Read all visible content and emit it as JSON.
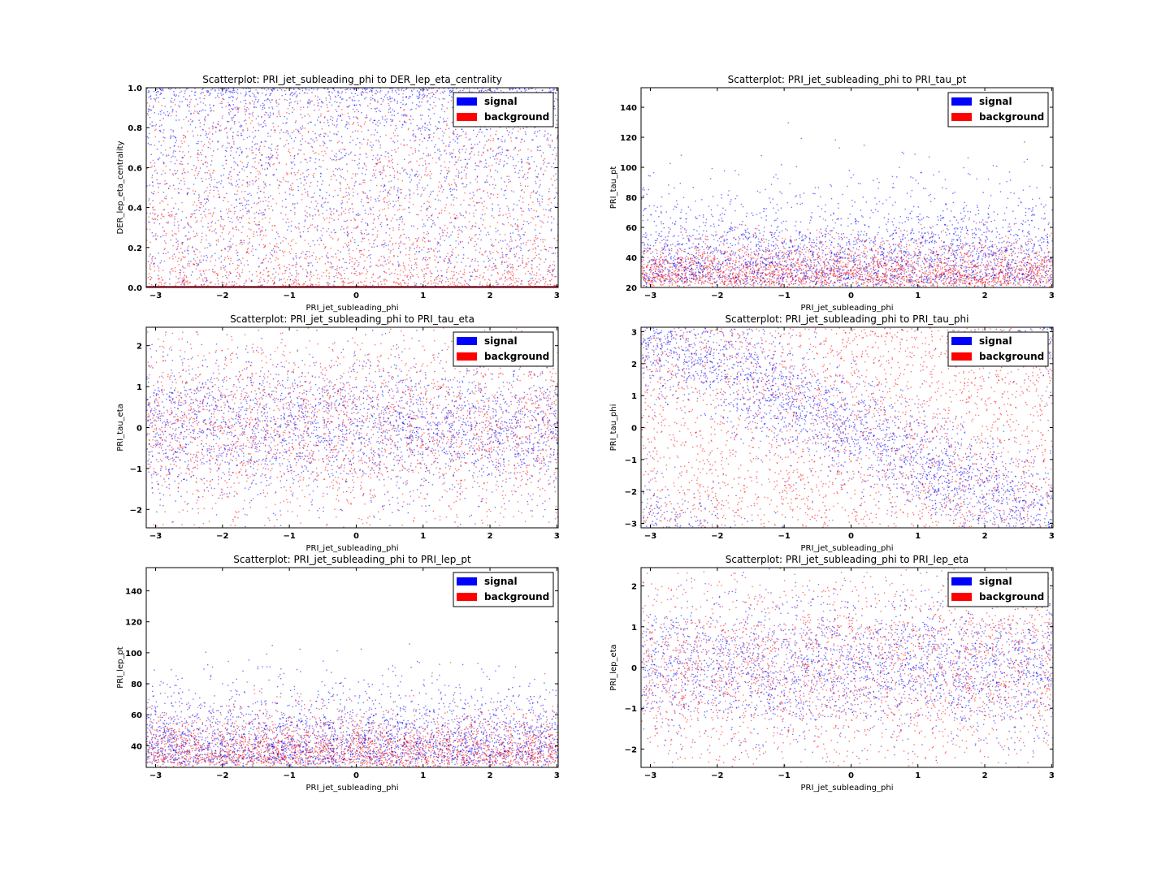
{
  "colors": {
    "signal": "#0000ff",
    "background": "#ff0000",
    "axes": "#000000",
    "page": "#ffffff"
  },
  "legend": {
    "entries": [
      "signal",
      "background"
    ],
    "placement": "top-right"
  },
  "chart_data": [
    {
      "type": "scatter",
      "title": "Scatterplot: PRI_jet_subleading_phi to DER_lep_eta_centrality",
      "xlabel": "PRI_jet_subleading_phi",
      "ylabel": "DER_lep_eta_centrality",
      "xlim": [
        -3.14,
        3.02
      ],
      "ylim": [
        0.0,
        1.0
      ],
      "xticks": [
        "−3",
        "−2",
        "−1",
        "0",
        "1",
        "2",
        "3"
      ],
      "xtick_values": [
        -3,
        -2,
        -1,
        0,
        1,
        2,
        3
      ],
      "yticks": [
        "0.0",
        "0.2",
        "0.4",
        "0.6",
        "0.8",
        "1.0"
      ],
      "ytick_values": [
        0.0,
        0.2,
        0.4,
        0.6,
        0.8,
        1.0
      ],
      "grid": false,
      "series": [
        {
          "name": "signal",
          "distribution": "concentrated near 1.0, thinning toward 0",
          "color": "#0000ff"
        },
        {
          "name": "background",
          "distribution": "concentrated near 0.0, spread upward",
          "color": "#ff0000"
        }
      ]
    },
    {
      "type": "scatter",
      "title": "Scatterplot: PRI_jet_subleading_phi to PRI_tau_pt",
      "xlabel": "PRI_jet_subleading_phi",
      "ylabel": "PRI_tau_pt",
      "xlim": [
        -3.14,
        3.02
      ],
      "ylim": [
        20,
        153
      ],
      "xticks": [
        "−3",
        "−2",
        "−1",
        "0",
        "1",
        "2",
        "3"
      ],
      "xtick_values": [
        -3,
        -2,
        -1,
        0,
        1,
        2,
        3
      ],
      "yticks": [
        "20",
        "40",
        "60",
        "80",
        "100",
        "120",
        "140"
      ],
      "ytick_values": [
        20,
        40,
        60,
        80,
        100,
        120,
        140
      ],
      "grid": false,
      "series": [
        {
          "name": "signal",
          "distribution": "dense 20–70, tail upward",
          "color": "#0000ff"
        },
        {
          "name": "background",
          "distribution": "dense 20–40, steep falloff",
          "color": "#ff0000"
        }
      ]
    },
    {
      "type": "scatter",
      "title": "Scatterplot: PRI_jet_subleading_phi to PRI_tau_eta",
      "xlabel": "PRI_jet_subleading_phi",
      "ylabel": "PRI_tau_eta",
      "xlim": [
        -3.14,
        3.02
      ],
      "ylim": [
        -2.45,
        2.45
      ],
      "xticks": [
        "−3",
        "−2",
        "−1",
        "0",
        "1",
        "2",
        "3"
      ],
      "xtick_values": [
        -3,
        -2,
        -1,
        0,
        1,
        2,
        3
      ],
      "yticks": [
        "−2",
        "−1",
        "0",
        "1",
        "2"
      ],
      "ytick_values": [
        -2,
        -1,
        0,
        1,
        2
      ],
      "grid": false,
      "series": [
        {
          "name": "signal",
          "distribution": "centered near 0, narrow",
          "color": "#0000ff"
        },
        {
          "name": "background",
          "distribution": "centered near 0, wide",
          "color": "#ff0000"
        }
      ]
    },
    {
      "type": "scatter",
      "title": "Scatterplot: PRI_jet_subleading_phi to PRI_tau_phi",
      "xlabel": "PRI_jet_subleading_phi",
      "ylabel": "PRI_tau_phi",
      "xlim": [
        -3.14,
        3.02
      ],
      "ylim": [
        -3.14,
        3.14
      ],
      "xticks": [
        "−3",
        "−2",
        "−1",
        "0",
        "1",
        "2",
        "3"
      ],
      "xtick_values": [
        -3,
        -2,
        -1,
        0,
        1,
        2,
        3
      ],
      "yticks": [
        "−3",
        "−2",
        "−1",
        "0",
        "1",
        "2",
        "3"
      ],
      "ytick_values": [
        -3,
        -2,
        -1,
        0,
        1,
        2,
        3
      ],
      "grid": false,
      "series": [
        {
          "name": "signal",
          "distribution": "anti-correlated bands",
          "color": "#0000ff"
        },
        {
          "name": "background",
          "distribution": "roughly uniform",
          "color": "#ff0000"
        }
      ]
    },
    {
      "type": "scatter",
      "title": "Scatterplot: PRI_jet_subleading_phi to PRI_lep_pt",
      "xlabel": "PRI_jet_subleading_phi",
      "ylabel": "PRI_lep_pt",
      "xlim": [
        -3.14,
        3.02
      ],
      "ylim": [
        26,
        155
      ],
      "xticks": [
        "−3",
        "−2",
        "−1",
        "0",
        "1",
        "2",
        "3"
      ],
      "xtick_values": [
        -3,
        -2,
        -1,
        0,
        1,
        2,
        3
      ],
      "yticks": [
        "40",
        "60",
        "80",
        "100",
        "120",
        "140"
      ],
      "ytick_values": [
        40,
        60,
        80,
        100,
        120,
        140
      ],
      "grid": false,
      "series": [
        {
          "name": "signal",
          "distribution": "dense 26–60, tail upward",
          "color": "#0000ff"
        },
        {
          "name": "background",
          "distribution": "dense 26–50, steep falloff",
          "color": "#ff0000"
        }
      ]
    },
    {
      "type": "scatter",
      "title": "Scatterplot: PRI_jet_subleading_phi to PRI_lep_eta",
      "xlabel": "PRI_jet_subleading_phi",
      "ylabel": "PRI_lep_eta",
      "xlim": [
        -3.14,
        3.02
      ],
      "ylim": [
        -2.45,
        2.45
      ],
      "xticks": [
        "−3",
        "−2",
        "−1",
        "0",
        "1",
        "2",
        "3"
      ],
      "xtick_values": [
        -3,
        -2,
        -1,
        0,
        1,
        2,
        3
      ],
      "yticks": [
        "−2",
        "−1",
        "0",
        "1",
        "2"
      ],
      "ytick_values": [
        -2,
        -1,
        0,
        1,
        2
      ],
      "grid": false,
      "series": [
        {
          "name": "signal",
          "distribution": "centered near 0 with horizontal gaps",
          "color": "#0000ff"
        },
        {
          "name": "background",
          "distribution": "wide with horizontal gaps",
          "color": "#ff0000"
        }
      ]
    }
  ]
}
